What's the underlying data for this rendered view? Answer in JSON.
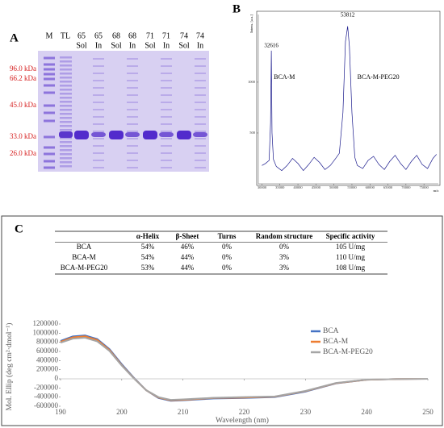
{
  "panel_labels": [
    "A",
    "B",
    "C"
  ],
  "gel": {
    "lanes": [
      {
        "top": "M"
      },
      {
        "top": "TL"
      },
      {
        "top": "65",
        "bottom": "Sol"
      },
      {
        "top": "65",
        "bottom": "In"
      },
      {
        "top": "68",
        "bottom": "Sol"
      },
      {
        "top": "68",
        "bottom": "In"
      },
      {
        "top": "71",
        "bottom": "Sol"
      },
      {
        "top": "71",
        "bottom": "In"
      },
      {
        "top": "74",
        "bottom": "Sol"
      },
      {
        "top": "74",
        "bottom": "In"
      }
    ],
    "markers": [
      "96.0 kDa",
      "66.2 kDa",
      "45.0 kDa",
      "33.0 kDa",
      "26.0 kDa"
    ]
  },
  "table": {
    "header": [
      "",
      "α-Helix",
      "β-Sheet",
      "Turns",
      "Random structure",
      "Specific activity"
    ],
    "rows": [
      [
        "BCA",
        "54%",
        "46%",
        "0%",
        "0%",
        "105 U/mg"
      ],
      [
        "BCA-M",
        "54%",
        "44%",
        "0%",
        "3%",
        "110 U/mg"
      ],
      [
        "BCA-M-PEG20",
        "53%",
        "44%",
        "0%",
        "3%",
        "108 U/mg"
      ]
    ]
  },
  "chart_data": [
    {
      "type": "line",
      "y_label": "Intens. [a.u.]",
      "x_label": "m/z",
      "annotations": [
        {
          "text": "32616",
          "x": 32616
        },
        {
          "text": "53812",
          "x": 53812
        },
        {
          "text": "BCA-M",
          "x": 32616
        },
        {
          "text": "BCA-M-PEG20",
          "x": 53812
        }
      ],
      "x": [
        30000,
        31000,
        32000,
        32400,
        32616,
        32800,
        33200,
        34000,
        35500,
        37000,
        38500,
        40000,
        41500,
        43000,
        44500,
        46000,
        47500,
        49000,
        50500,
        51500,
        52500,
        53200,
        53812,
        54300,
        55000,
        55800,
        56500,
        58000,
        59500,
        61000,
        62500,
        64000,
        65500,
        67000,
        68500,
        70000,
        71500,
        73000,
        74500,
        76000,
        77500,
        78500
      ],
      "series": [
        {
          "name": "spectrum",
          "color": "#1a1a8c",
          "values": [
            180,
            200,
            230,
            600,
            1310,
            500,
            240,
            170,
            130,
            180,
            250,
            200,
            130,
            190,
            260,
            210,
            140,
            180,
            250,
            300,
            700,
            1400,
            1550,
            1350,
            700,
            260,
            180,
            150,
            230,
            270,
            190,
            140,
            220,
            280,
            200,
            140,
            220,
            280,
            190,
            150,
            250,
            290
          ]
        }
      ],
      "xlim": [
        29000,
        79000
      ],
      "xticks": [
        30000,
        35000,
        40000,
        45000,
        50000,
        55000,
        60000,
        65000,
        70000,
        75000
      ],
      "ylim": [
        0,
        1650
      ],
      "yticks": [
        500,
        1000
      ]
    },
    {
      "type": "line",
      "x_label": "Wavelength (nm)",
      "y_label": "Mol. Ellip (deg cm²·dmol⁻¹)",
      "x": [
        190,
        192,
        194,
        196,
        198,
        200,
        202,
        204,
        206,
        208,
        210,
        215,
        220,
        225,
        230,
        235,
        240,
        245,
        250
      ],
      "series": [
        {
          "name": "BCA",
          "color": "#4472c4",
          "values": [
            830000,
            930000,
            950000,
            870000,
            650000,
            320000,
            20000,
            -250000,
            -420000,
            -480000,
            -470000,
            -430000,
            -420000,
            -400000,
            -280000,
            -100000,
            -20000,
            -5000,
            0
          ]
        },
        {
          "name": "BCA-M",
          "color": "#ed7d31",
          "values": [
            810000,
            910000,
            930000,
            850000,
            630000,
            300000,
            10000,
            -250000,
            -410000,
            -470000,
            -460000,
            -420000,
            -410000,
            -390000,
            -270000,
            -95000,
            -20000,
            -5000,
            0
          ]
        },
        {
          "name": "BCA-M-PEG20",
          "color": "#a5a5a5",
          "values": [
            790000,
            880000,
            900000,
            820000,
            610000,
            290000,
            5000,
            -250000,
            -400000,
            -460000,
            -450000,
            -415000,
            -400000,
            -385000,
            -265000,
            -90000,
            -18000,
            -5000,
            0
          ]
        }
      ],
      "xlim": [
        190,
        250
      ],
      "xticks": [
        190,
        200,
        210,
        220,
        230,
        240,
        250
      ],
      "ylim": [
        -600000,
        1200000
      ],
      "yticks": [
        -600000,
        -400000,
        -200000,
        0,
        200000,
        400000,
        600000,
        800000,
        1000000,
        1200000
      ],
      "legend": "right"
    }
  ]
}
